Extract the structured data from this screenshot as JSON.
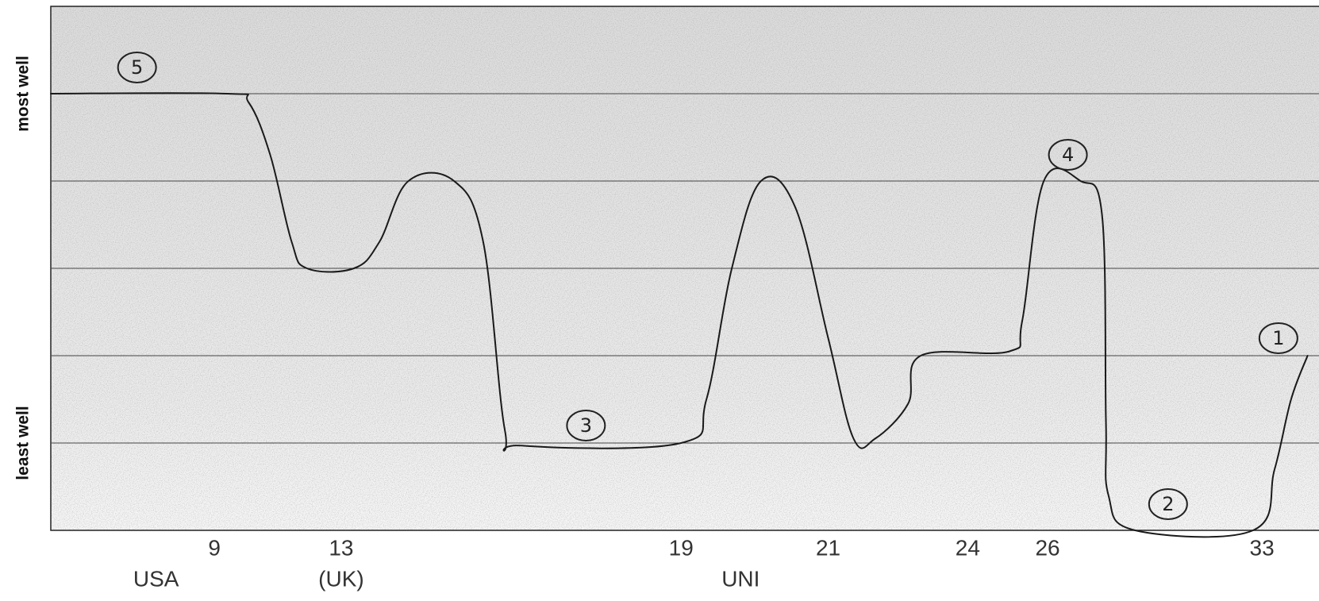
{
  "chart_data": {
    "type": "line",
    "color": "#1a1a1a",
    "xlim": [
      0,
      100
    ],
    "ylim": [
      0,
      6
    ],
    "yticks": [
      {
        "value": 5,
        "label": "most well"
      },
      {
        "value": 1,
        "label": "least well"
      }
    ],
    "grid_lines": [
      1,
      2,
      3,
      4,
      5
    ],
    "xticks": [
      {
        "value": 12.9,
        "label": "9"
      },
      {
        "value": 22.9,
        "label": "13"
      },
      {
        "value": 49.7,
        "label": "19"
      },
      {
        "value": 61.3,
        "label": "21"
      },
      {
        "value": 72.3,
        "label": "24"
      },
      {
        "value": 78.6,
        "label": "26"
      },
      {
        "value": 95.5,
        "label": "33"
      }
    ],
    "x_notes": [
      {
        "x": 8.3,
        "text": "USA"
      },
      {
        "x": 22.9,
        "text": "(UK)"
      },
      {
        "x": 54.4,
        "text": "UNI"
      }
    ],
    "x": [
      0,
      13.9,
      15.6,
      17.3,
      19.0,
      20.2,
      23.9,
      25.9,
      28.2,
      31.8,
      34.1,
      35.8,
      37.1,
      49.7,
      51.7,
      53.7,
      56.0,
      58.7,
      61.3,
      63.3,
      65.0,
      67.6,
      68.6,
      75.6,
      76.6,
      78.3,
      81.2,
      82.9,
      83.2,
      83.4,
      85.5,
      94.8,
      96.5,
      97.8,
      99.1
    ],
    "values": [
      5,
      5,
      4.9,
      4.3,
      3.3,
      3.0,
      3.0,
      3.3,
      4.0,
      4.0,
      3.3,
      1.15,
      0.97,
      1.0,
      1.5,
      3.0,
      4.0,
      3.7,
      2.2,
      1.05,
      1.05,
      1.45,
      2.0,
      2.05,
      2.4,
      4.0,
      4.0,
      3.6,
      1.25,
      0.4,
      0,
      0,
      0.7,
      1.5,
      2.0
    ],
    "annotations": [
      {
        "x": 6.8,
        "y": 5.3,
        "text": "5"
      },
      {
        "x": 42.2,
        "y": 1.2,
        "text": "3"
      },
      {
        "x": 80.2,
        "y": 4.3,
        "text": "4"
      },
      {
        "x": 96.8,
        "y": 2.2,
        "text": "1"
      },
      {
        "x": 88.1,
        "y": 0.3,
        "text": "2"
      }
    ]
  }
}
